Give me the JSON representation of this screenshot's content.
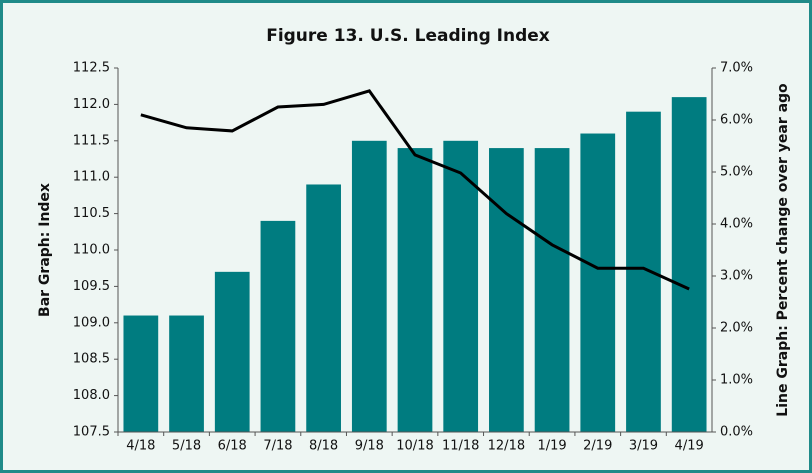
{
  "chart_data": {
    "type": "bar_line",
    "title": "Figure 13. U.S. Leading Index",
    "categories": [
      "4/18",
      "5/18",
      "6/18",
      "7/18",
      "8/18",
      "9/18",
      "10/18",
      "11/18",
      "12/18",
      "1/19",
      "2/19",
      "3/19",
      "4/19"
    ],
    "series": [
      {
        "name": "Bar Graph: Index",
        "type": "bar",
        "color": "#007c80",
        "values": [
          109.1,
          109.1,
          109.7,
          110.4,
          110.9,
          111.5,
          111.4,
          111.5,
          111.4,
          111.4,
          111.6,
          111.9,
          112.1
        ]
      },
      {
        "name": "Line Graph: Percent change over year ago",
        "type": "line",
        "axis": "y2",
        "color": "#000000",
        "values": [
          6.1,
          5.85,
          5.79,
          6.25,
          6.3,
          6.56,
          5.33,
          4.98,
          4.2,
          3.6,
          3.15,
          3.15,
          2.75
        ]
      }
    ],
    "ylabel": "Bar Graph: Index",
    "y2label": "Line Graph: Percent change over year ago",
    "ylim": [
      107.5,
      112.5
    ],
    "yticks": [
      {
        "value": 107.5,
        "label": "107.5"
      },
      {
        "value": 108,
        "label": "108.0"
      },
      {
        "value": 108.5,
        "label": "108.5"
      },
      {
        "value": 109,
        "label": "109.0"
      },
      {
        "value": 109.5,
        "label": "109.5"
      },
      {
        "value": 110,
        "label": "110.0"
      },
      {
        "value": 110.5,
        "label": "110.5"
      },
      {
        "value": 111,
        "label": "111.0"
      },
      {
        "value": 111.5,
        "label": "111.5"
      },
      {
        "value": 112,
        "label": "112.0"
      },
      {
        "value": 112.5,
        "label": "112.5"
      }
    ],
    "y2lim": [
      0,
      7
    ],
    "y2ticks": [
      {
        "value": 0,
        "label": "0.0%"
      },
      {
        "value": 1,
        "label": "1.0%"
      },
      {
        "value": 2,
        "label": "2.0%"
      },
      {
        "value": 3,
        "label": "3.0%"
      },
      {
        "value": 4,
        "label": "4.0%"
      },
      {
        "value": 5,
        "label": "5.0%"
      },
      {
        "value": 6,
        "label": "6.0%"
      },
      {
        "value": 7,
        "label": "7.0%"
      }
    ]
  }
}
